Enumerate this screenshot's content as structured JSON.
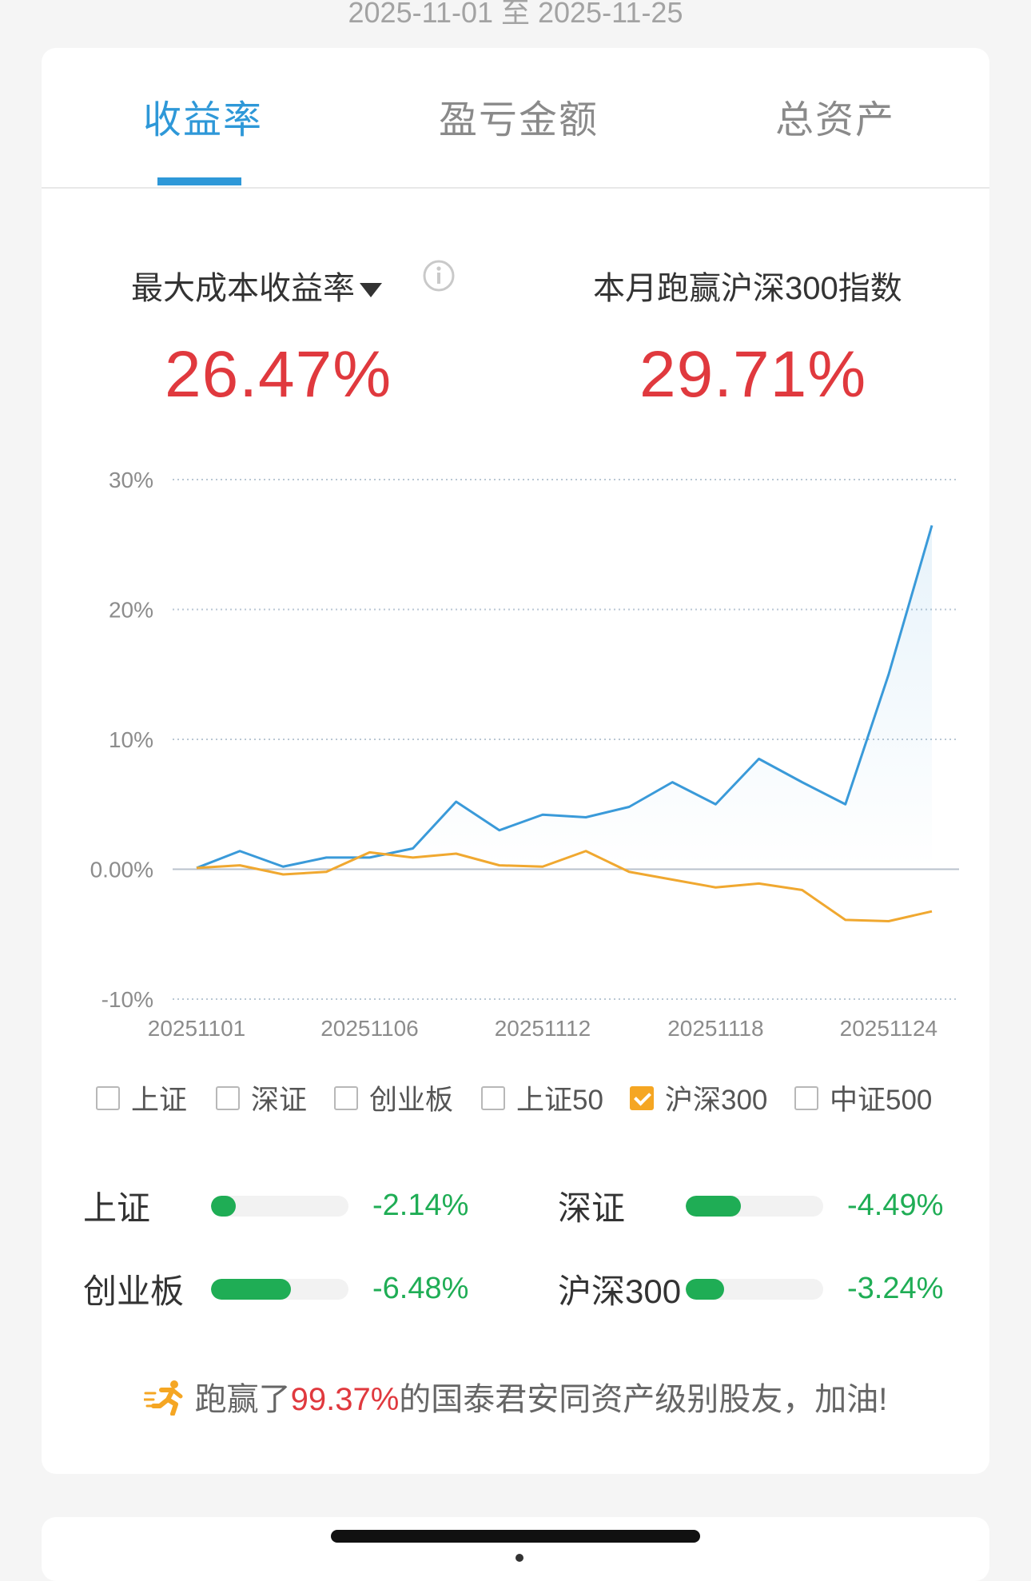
{
  "date_range": "2025-11-01 至 2025-11-25",
  "tabs": [
    {
      "label": "收益率"
    },
    {
      "label": "盈亏金额"
    },
    {
      "label": "总资产"
    }
  ],
  "metrics": {
    "left_label": "最大成本收益率",
    "left_value": "26.47%",
    "right_label": "本月跑赢沪深300指数",
    "right_value": "29.71%"
  },
  "chart_data": {
    "type": "line",
    "ylim": [
      -10,
      30
    ],
    "y_ticks": [
      "30%",
      "20%",
      "10%",
      "0.00%",
      "-10%"
    ],
    "x_tick_labels": [
      "20251101",
      "20251106",
      "20251112",
      "20251118",
      "20251124"
    ],
    "x": [
      "20251101",
      "20251103",
      "20251104",
      "20251105",
      "20251106",
      "20251107",
      "20251110",
      "20251111",
      "20251112",
      "20251113",
      "20251114",
      "20251117",
      "20251118",
      "20251119",
      "20251120",
      "20251121",
      "20251124",
      "20251125"
    ],
    "series": [
      {
        "color": "#3a9ad9",
        "values": [
          0.1,
          1.4,
          0.2,
          0.9,
          0.9,
          1.6,
          5.2,
          3.0,
          4.2,
          4.0,
          4.8,
          6.7,
          5.0,
          8.5,
          6.7,
          5.0,
          15.0,
          26.47
        ]
      },
      {
        "color": "#f0a830",
        "values": [
          0.1,
          0.3,
          -0.4,
          -0.2,
          1.3,
          0.9,
          1.2,
          0.3,
          0.2,
          1.4,
          -0.2,
          -0.8,
          -1.4,
          -1.1,
          -1.6,
          -3.9,
          -4.0,
          -3.24
        ]
      }
    ],
    "grid": true
  },
  "legend": [
    {
      "label": "上证",
      "checked": false
    },
    {
      "label": "深证",
      "checked": false
    },
    {
      "label": "创业板",
      "checked": false
    },
    {
      "label": "上证50",
      "checked": false
    },
    {
      "label": "沪深300",
      "checked": true
    },
    {
      "label": "中证500",
      "checked": false
    }
  ],
  "indices": [
    {
      "name": "上证",
      "value": "-2.14%",
      "level": 0.18
    },
    {
      "name": "深证",
      "value": "-4.49%",
      "level": 0.4
    },
    {
      "name": "创业板",
      "value": "-6.48%",
      "level": 0.58
    },
    {
      "name": "沪深300",
      "value": "-3.24%",
      "level": 0.28
    }
  ],
  "footer": {
    "prefix": "跑赢了",
    "percent": "99.37%",
    "suffix": "的国泰君安同资产级别股友，加油!"
  },
  "colors": {
    "accent": "#2e98d8",
    "up_red": "#e0393e",
    "down_green": "#1fad55",
    "series_blue": "#3a9ad9",
    "series_orange": "#f0a830"
  }
}
